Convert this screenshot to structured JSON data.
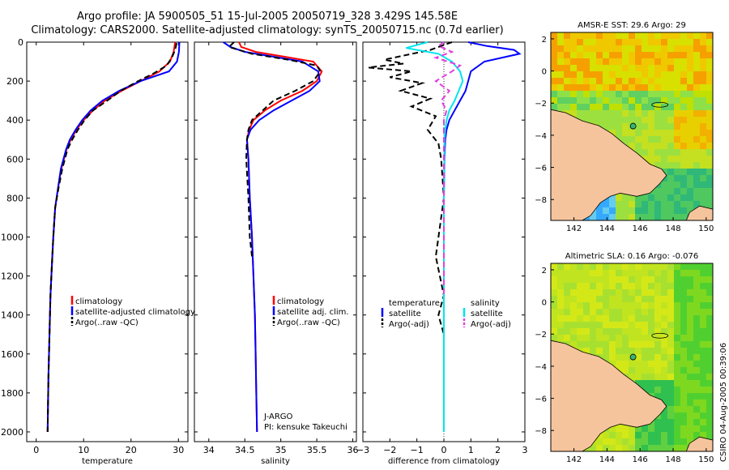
{
  "header": {
    "line1": "Argo profile: JA 5900505_51 15-Jul-2005 20050719_328 3.429S 145.58E",
    "line2": "Climatology: CARS2000. Satellite-adjusted climatology: synTS_20050715.nc (0.7d earlier)"
  },
  "stamp": "CSIRO 04-Aug-2005 00:39:06",
  "colors": {
    "climatology": "#ff0000",
    "satellite": "#0000ff",
    "argo": "#000000",
    "satellite_sal": "#00e5ee",
    "argo_sal": "#e040e0",
    "land": "#f6c49c"
  },
  "chart_data": [
    {
      "type": "line",
      "id": "temperature",
      "xlabel": "temperature",
      "ylabel": "",
      "xlim": [
        -2,
        32
      ],
      "ylim": [
        2050,
        0
      ],
      "xticks": [
        0,
        10,
        20,
        30
      ],
      "yticks": [
        0,
        200,
        400,
        600,
        800,
        1000,
        1200,
        1400,
        1600,
        1800,
        2000
      ],
      "legend": [
        "climatology",
        "satellite-adjusted climatology",
        "Argo(..raw -QC)"
      ],
      "series": [
        {
          "name": "climatology",
          "x": [
            29.3,
            29.0,
            28.2,
            26.0,
            22.0,
            18.0,
            14.5,
            12.0,
            10.0,
            8.5,
            7.3,
            6.4,
            5.3,
            4.6,
            4.0,
            3.6,
            3.3,
            3.0,
            2.8,
            2.6,
            2.5,
            2.4
          ],
          "y": [
            0,
            50,
            100,
            150,
            200,
            250,
            300,
            350,
            400,
            450,
            500,
            550,
            650,
            750,
            850,
            1000,
            1150,
            1300,
            1500,
            1700,
            1850,
            2000
          ]
        },
        {
          "name": "satellite-adjusted climatology",
          "x": [
            30.2,
            30.1,
            29.7,
            28.0,
            22.0,
            17.5,
            14.0,
            11.5,
            9.7,
            8.3,
            7.1,
            6.3,
            5.2,
            4.6,
            4.0,
            3.6,
            3.3,
            3.0,
            2.8,
            2.6,
            2.5,
            2.4
          ],
          "y": [
            0,
            50,
            100,
            150,
            200,
            250,
            300,
            350,
            400,
            450,
            500,
            550,
            650,
            750,
            850,
            1000,
            1150,
            1300,
            1500,
            1700,
            1850,
            2000
          ]
        },
        {
          "name": "Argo(..raw -QC)",
          "x": [
            29.6,
            29.3,
            28.6,
            27.5,
            24.8,
            21.5,
            17.8,
            15.0,
            12.0,
            10.2,
            8.8,
            7.6,
            6.6,
            5.5,
            4.7,
            4.0,
            3.6,
            3.3,
            3.0,
            2.8,
            2.6,
            2.5,
            2.4
          ],
          "y": [
            5,
            40,
            80,
            120,
            160,
            200,
            250,
            300,
            350,
            400,
            450,
            500,
            550,
            650,
            750,
            850,
            1000,
            1150,
            1300,
            1500,
            1700,
            1850,
            2000
          ]
        }
      ]
    },
    {
      "type": "line",
      "id": "salinity",
      "xlabel": "salinity",
      "xlim": [
        33.8,
        36.05
      ],
      "ylim": [
        2050,
        0
      ],
      "xticks": [
        34,
        34.5,
        35,
        35.5,
        36
      ],
      "legend": [
        "climatology",
        "satellite adj. clim.",
        "Argo(..raw -QC)"
      ],
      "annotation": [
        "J-ARGO",
        "PI: kensuke Takeuchi"
      ],
      "series": [
        {
          "name": "climatology",
          "x": [
            34.42,
            34.45,
            34.65,
            35.05,
            35.45,
            35.57,
            35.5,
            35.3,
            35.0,
            34.78,
            34.62,
            34.56,
            34.53,
            34.55,
            34.57,
            34.6,
            34.62,
            34.64,
            34.65,
            34.66,
            34.67
          ],
          "y": [
            0,
            25,
            50,
            75,
            100,
            150,
            200,
            250,
            300,
            350,
            400,
            450,
            500,
            600,
            800,
            1000,
            1200,
            1400,
            1600,
            1800,
            2000
          ]
        },
        {
          "name": "satellite adj. clim.",
          "x": [
            34.2,
            34.3,
            34.5,
            34.9,
            35.3,
            35.52,
            35.54,
            35.4,
            35.15,
            34.9,
            34.7,
            34.58,
            34.53,
            34.55,
            34.57,
            34.6,
            34.62,
            34.64,
            34.65,
            34.66,
            34.67
          ],
          "y": [
            0,
            25,
            50,
            75,
            100,
            150,
            200,
            250,
            300,
            350,
            400,
            450,
            500,
            600,
            800,
            1000,
            1200,
            1400,
            1600,
            1800,
            2000
          ]
        },
        {
          "name": "Argo(..raw -QC)",
          "x": [
            34.35,
            34.28,
            34.6,
            35.1,
            35.5,
            35.55,
            35.45,
            35.2,
            34.9,
            34.75,
            34.6,
            34.55,
            34.53,
            34.52,
            34.55,
            34.57,
            34.6
          ],
          "y": [
            0,
            25,
            60,
            90,
            120,
            150,
            200,
            250,
            300,
            350,
            400,
            450,
            500,
            600,
            800,
            1000,
            1100
          ]
        }
      ]
    },
    {
      "type": "line",
      "id": "difference",
      "xlabel": "difference from climatology",
      "xlim": [
        -3,
        3
      ],
      "ylim": [
        2050,
        0
      ],
      "xticks": [
        -3,
        -2,
        -1,
        0,
        1,
        2,
        3
      ],
      "legend_left": {
        "title": "temperature",
        "items": [
          "satellite",
          "Argo(-adj)"
        ]
      },
      "legend_right": {
        "title": "salinity",
        "items": [
          "satellite",
          "Argo(-adj)"
        ]
      },
      "series": [
        {
          "name": "temperature satellite",
          "x": [
            0.9,
            1.6,
            2.6,
            2.8,
            1.5,
            1.0,
            0.9,
            0.8,
            0.6,
            0.4,
            0.2,
            0.1,
            0.05,
            0.02,
            0.0,
            0.0,
            0.0,
            0.0
          ],
          "y": [
            0,
            20,
            40,
            60,
            100,
            150,
            200,
            250,
            300,
            350,
            400,
            450,
            500,
            600,
            800,
            1000,
            1500,
            2000
          ]
        },
        {
          "name": "temperature Argo(-adj)",
          "x": [
            0.3,
            -0.5,
            -2.2,
            -1.5,
            -2.8,
            -1.2,
            -2.0,
            -0.8,
            -1.6,
            -0.5,
            -1.2,
            -0.3,
            -0.6,
            -0.2,
            -0.1,
            0.0,
            -0.3,
            0.0,
            -0.2,
            0.0
          ],
          "y": [
            0,
            40,
            90,
            110,
            130,
            150,
            180,
            210,
            250,
            290,
            330,
            380,
            450,
            520,
            600,
            800,
            1100,
            1300,
            1400,
            1500
          ]
        },
        {
          "name": "salinity satellite",
          "x": [
            -0.6,
            -1.4,
            -0.2,
            0.3,
            0.6,
            0.7,
            0.55,
            0.4,
            0.2,
            0.1,
            0.05,
            0.02,
            0.0,
            0.0
          ],
          "y": [
            0,
            30,
            60,
            100,
            150,
            200,
            250,
            300,
            350,
            400,
            450,
            500,
            800,
            2000
          ]
        },
        {
          "name": "salinity Argo(-adj)",
          "x": [
            0.0,
            -0.2,
            0.3,
            -0.3,
            0.6,
            0.3,
            -0.3,
            0.2,
            -0.1,
            0.1,
            0.0,
            0.0,
            0.0
          ],
          "y": [
            0,
            20,
            50,
            80,
            120,
            150,
            200,
            250,
            300,
            350,
            400,
            800,
            1300
          ]
        }
      ]
    },
    {
      "type": "heatmap",
      "id": "sst-map",
      "title": "AMSR-E SST: 29.6 Argo: 29",
      "xlim": [
        140.6,
        150.4
      ],
      "ylim": [
        -9.3,
        2.4
      ],
      "xticks": [
        142,
        144,
        146,
        148,
        150
      ],
      "yticks": [
        2,
        0,
        -2,
        -4,
        -6,
        -8
      ],
      "argo_position": {
        "lon": 145.58,
        "lat": -3.429
      }
    },
    {
      "type": "heatmap",
      "id": "sla-map",
      "title": "Altimetric SLA: 0.16 Argo: -0.076",
      "xlim": [
        140.6,
        150.4
      ],
      "ylim": [
        -9.3,
        2.4
      ],
      "xticks": [
        142,
        144,
        146,
        148,
        150
      ],
      "yticks": [
        2,
        0,
        -2,
        -4,
        -6,
        -8
      ],
      "argo_position": {
        "lon": 145.58,
        "lat": -3.429
      }
    }
  ]
}
